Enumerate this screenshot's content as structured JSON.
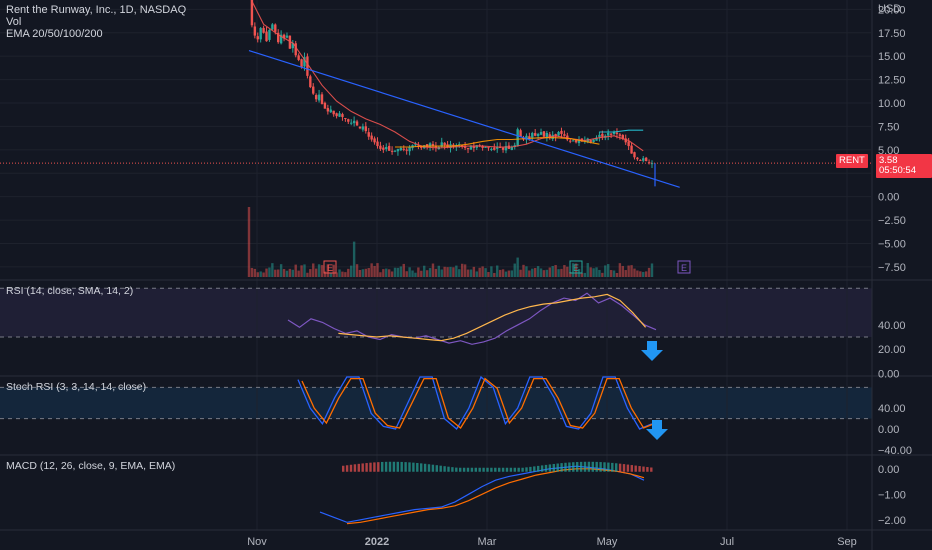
{
  "header": {
    "title": "Rent the Runway, Inc., 1D, NASDAQ",
    "vol": "Vol",
    "ema": "EMA 20/50/100/200"
  },
  "currency": "USD",
  "price_panel": {
    "ticks": [
      "20.00",
      "17.50",
      "15.00",
      "12.50",
      "10.00",
      "7.50",
      "5.00",
      "2.50",
      "0.00",
      "−2.50",
      "−5.00",
      "−7.50"
    ],
    "ylim": [
      -8.9,
      21
    ],
    "last_price": "3.58",
    "countdown": "05:50:54",
    "ticker_tag": "RENT"
  },
  "rsi_panel": {
    "label": "RSI (14, close, SMA, 14, 2)",
    "ticks": [
      "40.00",
      "20.00",
      "0.00"
    ],
    "ylim": [
      -2,
      76
    ]
  },
  "stoch_panel": {
    "label": "Stoch RSI (3, 3, 14, 14, close)",
    "ticks": [
      "40.00",
      "0.00",
      "−40.00"
    ],
    "ylim": [
      -50,
      100
    ]
  },
  "macd_panel": {
    "label": "MACD (12, 26, close, 9, EMA, EMA)",
    "ticks": [
      "0.00",
      "−1.00",
      "−2.00"
    ],
    "ylim": [
      -2.4,
      0.5
    ]
  },
  "time_axis": [
    "Nov",
    "2022",
    "Mar",
    "May",
    "Jul",
    "Sep"
  ],
  "earnings_marker": "E",
  "colors": {
    "bg": "#131722",
    "up": "#26a69a",
    "down": "#ef5350",
    "trend": "#2962ff",
    "rsi": "#7e57c2",
    "signal": "#ffb74d",
    "arrow": "#2196f3",
    "macd": "#2962ff",
    "macd_signal": "#ff6d00"
  },
  "icons": [
    "arrow-down-icon",
    "earnings-icon"
  ],
  "chart_data": {
    "type": "candlestick",
    "x_start": "2021-10-27",
    "x_end": "2022-05-20",
    "close_series": [
      21.5,
      18.3,
      17.2,
      16.8,
      18.0,
      17.5,
      16.6,
      17.8,
      18.4,
      17.6,
      16.5,
      17.3,
      16.9,
      17.2,
      15.8,
      16.4,
      15.1,
      14.6,
      13.8,
      14.9,
      12.9,
      11.7,
      11.0,
      10.4,
      10.9,
      9.9,
      9.4,
      9.1,
      9.3,
      8.8,
      8.6,
      8.9,
      8.5,
      8.3,
      8.0,
      7.9,
      8.1,
      7.6,
      7.3,
      7.5,
      7.0,
      6.4,
      6.1,
      5.8,
      5.4,
      5.1,
      5.0,
      5.3,
      4.9,
      4.8,
      4.9,
      5.1,
      5.2,
      5.0,
      4.9,
      5.3,
      5.5,
      5.6,
      5.3,
      5.2,
      5.5,
      5.3,
      5.7,
      5.4,
      5.2,
      5.3,
      5.8,
      5.5,
      5.3,
      5.6,
      5.4,
      5.5,
      5.6,
      5.3,
      5.2,
      5.1,
      5.4,
      5.2,
      5.5,
      5.4,
      5.2,
      5.3,
      5.2,
      5.1,
      5.0,
      5.3,
      5.2,
      5.0,
      5.4,
      5.1,
      5.3,
      5.5,
      7.2,
      6.4,
      6.1,
      6.5,
      6.2,
      6.8,
      6.5,
      6.7,
      6.9,
      6.4,
      6.8,
      6.3,
      6.6,
      6.4,
      6.9,
      6.7,
      6.5,
      6.1,
      5.9,
      6.0,
      5.8,
      6.1,
      5.9,
      6.0,
      6.2,
      5.8,
      6.1,
      6.3,
      6.6,
      6.4,
      6.5,
      6.8,
      6.6,
      6.9,
      6.7,
      6.5,
      6.2,
      5.8,
      5.4,
      4.6,
      4.2,
      4.0,
      3.9,
      4.1,
      3.8,
      3.6,
      3.58
    ],
    "ema": [
      {
        "name": "EMA 20",
        "start_index": 0,
        "values_every5": [
          21.5,
          18.4,
          17.3,
          16.4,
          14.2,
          11.9,
          10.2,
          9.1,
          8.3,
          7.7,
          6.9,
          5.9,
          5.3,
          5.2,
          5.3,
          5.4,
          5.4,
          5.3,
          5.3,
          5.6,
          6.2,
          6.5,
          6.2,
          6.0,
          6.3,
          6.5,
          6.0,
          4.9
        ]
      },
      {
        "name": "EMA 50",
        "start_index": 50,
        "values_every5": [
          5.3,
          5.3,
          5.4,
          5.4,
          5.4,
          5.6,
          5.9,
          6.1,
          6.1,
          6.2,
          6.3,
          6.3,
          6.2,
          5.9,
          5.6
        ]
      },
      {
        "name": "EMA 100",
        "start_index": 120,
        "values_every5": [
          6.9,
          6.9,
          7.1,
          7.1
        ]
      }
    ],
    "trendline": {
      "from": [
        0,
        15.6
      ],
      "to": [
        142,
        1.0
      ]
    },
    "volume_note": "spike on IPO day"
  }
}
